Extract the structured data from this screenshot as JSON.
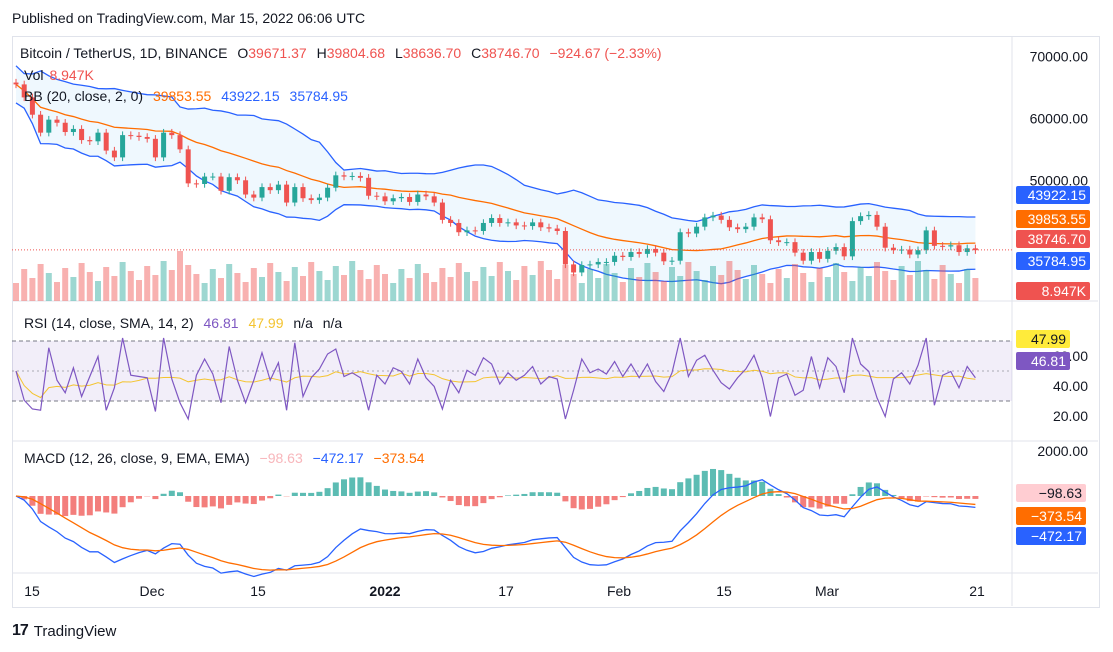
{
  "header": {
    "published": "Published on TradingView.com, Mar 15, 2022 06:06 UTC"
  },
  "main_legend": {
    "symbol": "Bitcoin / TetherUS, 1D, BINANCE",
    "o_label": "O",
    "o_value": "39671.37",
    "h_label": "H",
    "h_value": "39804.68",
    "l_label": "L",
    "l_value": "38636.70",
    "c_label": "C",
    "c_value": "38746.70",
    "change": "−924.67 (−2.33%)"
  },
  "vol_legend": {
    "label": "Vol",
    "value": "8.947K"
  },
  "bb_legend": {
    "label": "BB (20, close, 2, 0)",
    "basis": "39853.55",
    "upper": "43922.15",
    "lower": "35784.95"
  },
  "rsi_legend": {
    "label": "RSI (14, close, SMA, 14, 2)",
    "rsi": "46.81",
    "sma": "47.99",
    "na1": "n/a",
    "na2": "n/a"
  },
  "macd_legend": {
    "label": "MACD (12, 26, close, 9, EMA, EMA)",
    "hist": "−98.63",
    "macd": "−472.17",
    "signal": "−373.54"
  },
  "price_axis": [
    "70000.00",
    "60000.00",
    "50000.00"
  ],
  "rsi_axis": [
    "60.00",
    "40.00",
    "20.00"
  ],
  "macd_axis": [
    "2000.00"
  ],
  "price_tags": [
    {
      "text": "43922.15",
      "color": "#2962ff"
    },
    {
      "text": "39853.55",
      "color": "#ff6d00"
    },
    {
      "text": "38746.70",
      "color": "#ef5350"
    },
    {
      "text": "35784.95",
      "color": "#2962ff"
    },
    {
      "text": "8.947K",
      "color": "#ef5350"
    }
  ],
  "rsi_tags": [
    {
      "text": "47.99",
      "color": "#ffeb3b",
      "fg": "#131722"
    },
    {
      "text": "46.81",
      "color": "#7e57c2",
      "fg": "#ffffff"
    }
  ],
  "macd_tags": [
    {
      "text": "−98.63",
      "color": "#ffcdd2",
      "fg": "#131722"
    },
    {
      "text": "−373.54",
      "color": "#ff6d00",
      "fg": "#ffffff"
    },
    {
      "text": "−472.17",
      "color": "#2962ff",
      "fg": "#ffffff"
    }
  ],
  "time_axis": [
    "15",
    "Dec",
    "15",
    "2022",
    "17",
    "Feb",
    "15",
    "Mar",
    "21"
  ],
  "footer": {
    "brand": "TradingView",
    "logo": "17"
  },
  "chart_data": {
    "type": "candlestick",
    "symbol": "BTCUSDT",
    "ylim": [
      30000,
      73000
    ],
    "closes": [
      65500,
      63400,
      60600,
      57700,
      59800,
      59300,
      57800,
      58300,
      56500,
      56300,
      57700,
      54800,
      53700,
      57300,
      57200,
      57000,
      56700,
      53700,
      57700,
      57300,
      55000,
      49500,
      49400,
      50600,
      50600,
      48300,
      50500,
      50000,
      47700,
      47200,
      48900,
      48400,
      49300,
      46400,
      48900,
      47100,
      46800,
      47200,
      48800,
      50800,
      50600,
      50700,
      50400,
      47500,
      47400,
      46600,
      47100,
      47300,
      46500,
      47700,
      47400,
      46400,
      43600,
      43100,
      41600,
      41900,
      41800,
      43100,
      43900,
      43100,
      43200,
      42700,
      42600,
      43200,
      42400,
      42200,
      41800,
      36400,
      35100,
      36300,
      36400,
      36800,
      36800,
      37800,
      37600,
      38400,
      38100,
      38900,
      38300,
      36900,
      37000,
      41600,
      41400,
      42500,
      44000,
      44300,
      43600,
      42400,
      42100,
      42500,
      44000,
      43700,
      40300,
      40000,
      40000,
      38300,
      37000,
      38400,
      37300,
      38600,
      39200,
      37700,
      43400,
      44200,
      44400,
      42500,
      39100,
      38700,
      38800,
      38000,
      38700,
      41900,
      39400,
      39300,
      39500,
      38400,
      39000,
      38700
    ]
  }
}
